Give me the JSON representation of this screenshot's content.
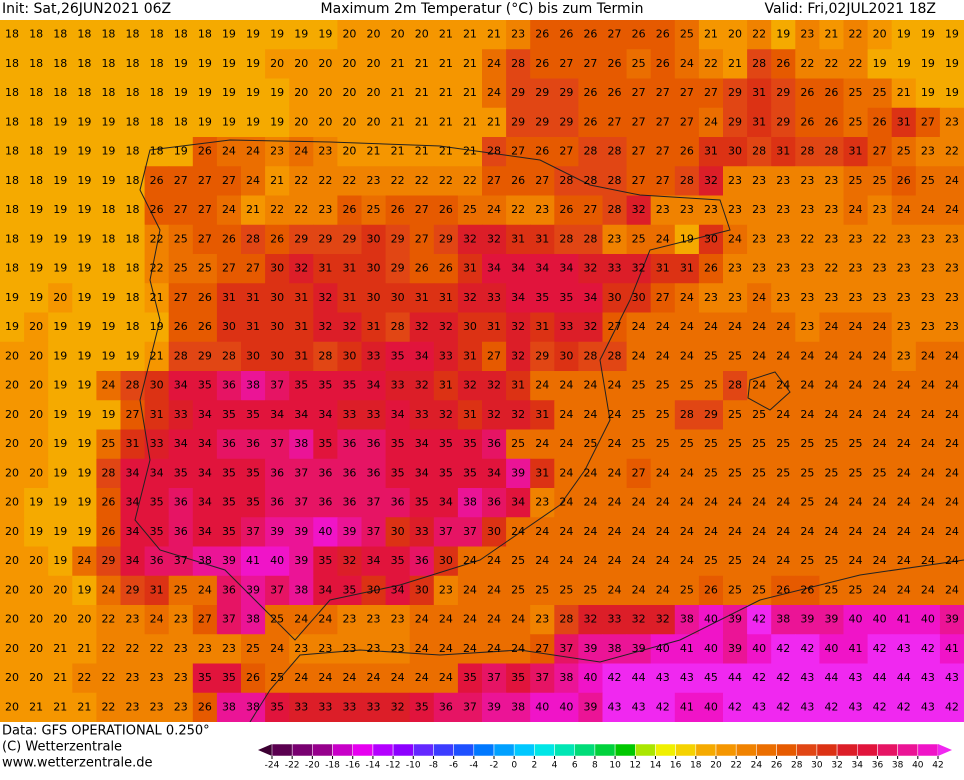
{
  "header": {
    "init": "Init: Sat,26JUN2021 06Z",
    "title": "Maximum 2m Temperatur (°C) bis zum Termin",
    "valid": "Valid: Fri,02JUL2021 18Z"
  },
  "footer": {
    "data": "Data: GFS OPERATIONAL 0.250°",
    "copyright": "(C) Wetterzentrale",
    "url": "www.wetterzentrale.de"
  },
  "map": {
    "rows": [
      [
        18,
        18,
        18,
        18,
        18,
        18,
        18,
        18,
        18,
        19,
        19,
        19,
        19,
        19,
        20,
        20,
        20,
        20,
        21,
        21,
        21,
        23,
        26,
        26,
        26,
        27,
        26,
        26,
        25,
        21,
        20,
        22,
        19,
        23,
        21,
        22,
        20,
        19,
        19,
        19
      ],
      [
        18,
        18,
        18,
        18,
        18,
        18,
        18,
        19,
        19,
        19,
        19,
        20,
        20,
        20,
        20,
        20,
        21,
        21,
        21,
        21,
        24,
        28,
        26,
        27,
        27,
        26,
        25,
        26,
        24,
        22,
        21,
        28,
        26,
        22,
        22,
        22,
        19,
        19,
        19,
        19
      ],
      [
        18,
        18,
        18,
        18,
        18,
        18,
        18,
        19,
        19,
        19,
        19,
        19,
        20,
        20,
        20,
        20,
        21,
        21,
        21,
        21,
        24,
        29,
        29,
        29,
        26,
        26,
        27,
        27,
        27,
        27,
        29,
        31,
        29,
        26,
        26,
        25,
        25,
        21,
        19,
        19
      ],
      [
        18,
        18,
        19,
        19,
        19,
        18,
        18,
        18,
        19,
        19,
        19,
        19,
        20,
        20,
        20,
        20,
        21,
        21,
        21,
        21,
        21,
        29,
        29,
        29,
        26,
        27,
        27,
        27,
        27,
        24,
        29,
        31,
        29,
        26,
        26,
        25,
        26,
        31,
        27,
        23
      ],
      [
        18,
        18,
        19,
        19,
        19,
        18,
        18,
        19,
        26,
        24,
        24,
        23,
        24,
        23,
        20,
        21,
        21,
        21,
        21,
        21,
        28,
        27,
        26,
        27,
        28,
        28,
        27,
        27,
        26,
        31,
        30,
        28,
        31,
        28,
        28,
        31,
        27,
        25,
        23,
        22
      ],
      [
        18,
        18,
        19,
        19,
        19,
        18,
        26,
        27,
        27,
        27,
        24,
        21,
        22,
        22,
        22,
        23,
        22,
        22,
        22,
        22,
        27,
        26,
        27,
        28,
        28,
        28,
        27,
        27,
        28,
        32,
        23,
        23,
        23,
        23,
        23,
        25,
        25,
        26,
        25,
        24
      ],
      [
        18,
        19,
        19,
        19,
        18,
        18,
        26,
        27,
        27,
        24,
        21,
        22,
        22,
        23,
        26,
        25,
        26,
        27,
        26,
        25,
        24,
        22,
        23,
        26,
        27,
        28,
        32,
        23,
        23,
        23,
        23,
        23,
        23,
        23,
        23,
        24,
        23,
        24,
        24,
        24
      ],
      [
        18,
        19,
        19,
        19,
        18,
        18,
        22,
        25,
        27,
        26,
        28,
        26,
        29,
        29,
        29,
        30,
        29,
        27,
        29,
        32,
        32,
        31,
        31,
        28,
        28,
        23,
        25,
        24,
        19,
        30,
        24,
        23,
        23,
        22,
        23,
        23,
        22,
        23,
        23,
        23
      ],
      [
        18,
        19,
        19,
        19,
        18,
        18,
        22,
        25,
        25,
        27,
        27,
        30,
        32,
        31,
        31,
        30,
        29,
        26,
        26,
        31,
        34,
        34,
        34,
        34,
        32,
        33,
        32,
        31,
        31,
        26,
        23,
        23,
        23,
        23,
        22,
        23,
        23,
        23,
        23,
        23
      ],
      [
        19,
        19,
        20,
        19,
        19,
        18,
        21,
        27,
        26,
        31,
        31,
        30,
        31,
        32,
        31,
        30,
        30,
        31,
        31,
        32,
        33,
        34,
        35,
        35,
        34,
        30,
        30,
        27,
        24,
        23,
        23,
        24,
        23,
        23,
        23,
        23,
        23,
        23,
        23,
        23
      ],
      [
        19,
        20,
        19,
        19,
        19,
        18,
        19,
        26,
        26,
        30,
        31,
        30,
        31,
        32,
        32,
        31,
        28,
        32,
        32,
        30,
        31,
        32,
        31,
        33,
        32,
        27,
        24,
        24,
        24,
        24,
        24,
        24,
        24,
        23,
        24,
        24,
        24,
        23,
        23,
        23
      ],
      [
        20,
        20,
        19,
        19,
        19,
        19,
        21,
        28,
        29,
        28,
        30,
        30,
        31,
        28,
        30,
        33,
        35,
        34,
        33,
        31,
        27,
        32,
        29,
        30,
        28,
        28,
        24,
        24,
        24,
        25,
        25,
        24,
        24,
        24,
        24,
        24,
        24,
        23,
        24,
        24
      ],
      [
        20,
        20,
        19,
        19,
        24,
        28,
        30,
        34,
        35,
        36,
        38,
        37,
        35,
        35,
        35,
        34,
        33,
        32,
        31,
        32,
        32,
        31,
        24,
        24,
        24,
        24,
        25,
        25,
        25,
        25,
        28,
        24,
        24,
        24,
        24,
        24,
        24,
        24,
        24,
        24
      ],
      [
        20,
        20,
        19,
        19,
        19,
        27,
        31,
        33,
        34,
        35,
        35,
        34,
        34,
        34,
        33,
        33,
        34,
        33,
        32,
        31,
        32,
        32,
        31,
        24,
        24,
        24,
        25,
        25,
        28,
        29,
        25,
        25,
        24,
        24,
        24,
        24,
        24,
        24,
        24,
        24
      ],
      [
        20,
        20,
        19,
        19,
        25,
        31,
        33,
        34,
        34,
        36,
        36,
        37,
        38,
        35,
        36,
        36,
        35,
        34,
        35,
        35,
        36,
        25,
        24,
        24,
        25,
        24,
        25,
        25,
        25,
        25,
        25,
        25,
        25,
        25,
        25,
        25,
        24,
        24,
        24,
        24
      ],
      [
        20,
        20,
        19,
        19,
        28,
        34,
        34,
        35,
        34,
        35,
        35,
        36,
        37,
        36,
        36,
        36,
        35,
        34,
        35,
        35,
        34,
        39,
        31,
        24,
        24,
        24,
        27,
        24,
        24,
        25,
        25,
        25,
        25,
        25,
        25,
        25,
        25,
        24,
        24,
        24
      ],
      [
        20,
        19,
        19,
        19,
        26,
        34,
        35,
        36,
        34,
        35,
        35,
        36,
        37,
        36,
        36,
        37,
        36,
        35,
        34,
        38,
        36,
        34,
        23,
        24,
        24,
        24,
        24,
        24,
        24,
        24,
        24,
        24,
        24,
        25,
        24,
        24,
        24,
        24,
        24,
        24
      ],
      [
        20,
        19,
        19,
        19,
        26,
        34,
        35,
        36,
        34,
        35,
        37,
        39,
        39,
        40,
        39,
        37,
        30,
        33,
        37,
        37,
        30,
        24,
        24,
        24,
        24,
        24,
        24,
        24,
        24,
        24,
        24,
        24,
        24,
        24,
        24,
        24,
        24,
        24,
        24,
        24
      ],
      [
        20,
        20,
        19,
        24,
        29,
        34,
        36,
        37,
        38,
        39,
        41,
        40,
        39,
        35,
        32,
        34,
        35,
        36,
        30,
        24,
        24,
        25,
        24,
        24,
        24,
        24,
        24,
        24,
        24,
        25,
        25,
        24,
        24,
        25,
        25,
        24,
        24,
        24,
        24,
        24
      ],
      [
        20,
        20,
        20,
        19,
        24,
        29,
        31,
        25,
        24,
        36,
        39,
        37,
        38,
        34,
        35,
        30,
        34,
        30,
        23,
        24,
        24,
        25,
        25,
        25,
        25,
        24,
        24,
        24,
        25,
        26,
        25,
        25,
        26,
        26,
        25,
        25,
        24,
        24,
        24,
        24
      ],
      [
        20,
        20,
        20,
        20,
        22,
        23,
        24,
        23,
        27,
        37,
        38,
        25,
        24,
        24,
        23,
        23,
        23,
        24,
        24,
        24,
        24,
        24,
        23,
        28,
        32,
        33,
        32,
        32,
        38,
        40,
        39,
        42,
        38,
        39,
        39,
        40,
        40,
        41,
        40,
        39
      ],
      [
        20,
        20,
        21,
        21,
        22,
        22,
        22,
        23,
        23,
        23,
        25,
        24,
        23,
        23,
        23,
        23,
        23,
        24,
        24,
        24,
        24,
        24,
        27,
        37,
        39,
        38,
        39,
        40,
        41,
        40,
        39,
        40,
        42,
        42,
        40,
        41,
        42,
        43,
        42,
        41
      ],
      [
        20,
        20,
        21,
        22,
        22,
        23,
        23,
        23,
        35,
        35,
        26,
        25,
        24,
        24,
        24,
        24,
        24,
        24,
        24,
        35,
        37,
        35,
        37,
        38,
        40,
        42,
        44,
        43,
        43,
        45,
        44,
        42,
        42,
        43,
        44,
        43,
        44,
        44,
        43,
        43
      ],
      [
        20,
        21,
        21,
        21,
        22,
        23,
        23,
        23,
        26,
        38,
        38,
        35,
        33,
        33,
        33,
        33,
        32,
        35,
        36,
        37,
        39,
        38,
        40,
        40,
        39,
        43,
        43,
        42,
        41,
        40,
        42,
        43,
        42,
        43,
        42,
        43,
        42,
        42,
        43,
        42
      ]
    ]
  },
  "colorbar": {
    "ticks": [
      -24,
      -22,
      -20,
      -18,
      -16,
      -14,
      -12,
      -10,
      -8,
      -6,
      -4,
      -2,
      0,
      2,
      4,
      6,
      8,
      10,
      12,
      14,
      16,
      18,
      20,
      22,
      24,
      26,
      28,
      30,
      32,
      34,
      36,
      38,
      40,
      42
    ],
    "colors": [
      "#3c0032",
      "#5a0050",
      "#780070",
      "#96008c",
      "#c800c8",
      "#e600f0",
      "#b400ff",
      "#8c00ff",
      "#6428ff",
      "#3c3cff",
      "#1e50ff",
      "#0078ff",
      "#00a0ff",
      "#00c8ff",
      "#00e6e6",
      "#00e6b4",
      "#00dc78",
      "#00d23c",
      "#00c800",
      "#aae600",
      "#f0f000",
      "#f5d200",
      "#f5aa00",
      "#f59600",
      "#f08200",
      "#eb6e00",
      "#e65a00",
      "#e14614",
      "#dc3214",
      "#dc1e28",
      "#e1143c",
      "#e61464",
      "#eb1496",
      "#f014c8",
      "#f028f0"
    ]
  }
}
